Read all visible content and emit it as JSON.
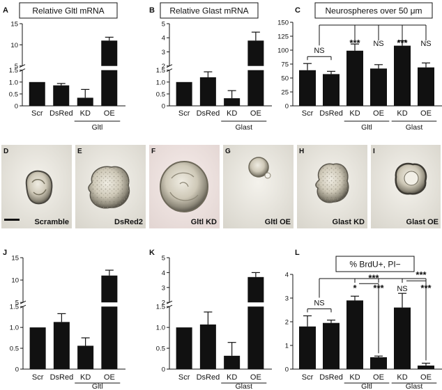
{
  "panels": {
    "A": {
      "letter": "A",
      "title": "Relative Gltl mRNA"
    },
    "B": {
      "letter": "B",
      "title": "Relative Glast mRNA"
    },
    "C": {
      "letter": "C",
      "title": "Neurospheres over 50 μm"
    },
    "J": {
      "letter": "J"
    },
    "K": {
      "letter": "K"
    },
    "L": {
      "letter": "L",
      "title": "% BrdU+, PI−"
    }
  },
  "micrographs": [
    {
      "letter": "D",
      "caption": "Scramble",
      "scale_bar": true
    },
    {
      "letter": "E",
      "caption": "DsRed2"
    },
    {
      "letter": "F",
      "caption": "Gltl KD"
    },
    {
      "letter": "G",
      "caption": "Gltl OE"
    },
    {
      "letter": "H",
      "caption": "Glast KD"
    },
    {
      "letter": "I",
      "caption": "Glast OE"
    }
  ],
  "chart_data": [
    {
      "panel": "A",
      "type": "bar",
      "title": "Relative Gltl mRNA",
      "categories": [
        "Scr",
        "DsRed",
        "KD",
        "OE"
      ],
      "groups": [
        {
          "label": "Gltl",
          "categories": [
            "KD",
            "OE"
          ]
        }
      ],
      "values": [
        1.0,
        0.86,
        0.34,
        11.0
      ],
      "errors": [
        0,
        0.08,
        0.35,
        0.8
      ],
      "axis_break": {
        "lower": [
          0,
          1.5
        ],
        "upper": [
          5,
          15
        ]
      },
      "yticks_lower": [
        "0",
        "0.5",
        "1.0",
        "1.5"
      ],
      "yticks_upper": [
        "5",
        "10",
        "15"
      ]
    },
    {
      "panel": "B",
      "type": "bar",
      "title": "Relative Glast mRNA",
      "categories": [
        "Scr",
        "DsRed",
        "KD",
        "OE"
      ],
      "groups": [
        {
          "label": "Glast",
          "categories": [
            "KD",
            "OE"
          ]
        }
      ],
      "values": [
        1.0,
        1.2,
        0.32,
        3.8
      ],
      "errors": [
        0,
        0.23,
        0.32,
        0.6
      ],
      "axis_break": {
        "lower": [
          0,
          1.5
        ],
        "upper": [
          2,
          5
        ]
      },
      "yticks_lower": [
        "0",
        "0.5",
        "1.0",
        "1.5"
      ],
      "yticks_upper": [
        "2",
        "3",
        "4",
        "5"
      ]
    },
    {
      "panel": "C",
      "type": "bar",
      "title": "Neurospheres over 50 μm",
      "categories": [
        "Scr",
        "DsRed",
        "KD",
        "OE",
        "KD",
        "OE"
      ],
      "groups": [
        {
          "label": "Gltl",
          "categories": [
            "KD",
            "OE"
          ]
        },
        {
          "label": "Glast",
          "categories": [
            "KD",
            "OE"
          ]
        }
      ],
      "values": [
        64,
        57,
        99,
        67,
        108,
        69
      ],
      "errors": [
        12,
        5,
        12,
        7,
        9,
        8
      ],
      "ylim": [
        0,
        150
      ],
      "yticks": [
        "0",
        "25",
        "50",
        "75",
        "100",
        "125",
        "150"
      ],
      "significance": [
        {
          "label": "NS",
          "type": "pair"
        },
        {
          "label": "***",
          "type": "vs-control"
        },
        {
          "label": "NS",
          "type": "vs-control"
        },
        {
          "label": "***",
          "type": "vs-control"
        },
        {
          "label": "NS",
          "type": "vs-control"
        }
      ]
    },
    {
      "panel": "J",
      "type": "bar",
      "categories": [
        "Scr",
        "DsRed",
        "KD",
        "OE"
      ],
      "groups": [
        {
          "label": "Gltl",
          "categories": [
            "KD",
            "OE"
          ]
        }
      ],
      "values": [
        1.0,
        1.13,
        0.56,
        11.0
      ],
      "errors": [
        0,
        0.2,
        0.19,
        1.2
      ],
      "axis_break": {
        "lower": [
          0,
          1.5
        ],
        "upper": [
          5,
          15
        ]
      },
      "yticks_lower": [
        "0",
        "0.5",
        "1.0",
        "1.5"
      ],
      "yticks_upper": [
        "5",
        "10",
        "15"
      ]
    },
    {
      "panel": "K",
      "type": "bar",
      "categories": [
        "Scr",
        "DsRed",
        "KD",
        "OE"
      ],
      "groups": [
        {
          "label": "Glast",
          "categories": [
            "KD",
            "OE"
          ]
        }
      ],
      "values": [
        1.0,
        1.07,
        0.32,
        3.7
      ],
      "errors": [
        0,
        0.3,
        0.32,
        0.3
      ],
      "axis_break": {
        "lower": [
          0,
          1.5
        ],
        "upper": [
          2,
          5
        ]
      },
      "yticks_lower": [
        "0",
        "0.5",
        "1.0",
        "1.5"
      ],
      "yticks_upper": [
        "2",
        "3",
        "4",
        "5"
      ]
    },
    {
      "panel": "L",
      "type": "bar",
      "title": "% BrdU+, PI−",
      "categories": [
        "Scr",
        "DsRed",
        "KD",
        "OE",
        "KD",
        "OE"
      ],
      "groups": [
        {
          "label": "Gltl",
          "categories": [
            "KD",
            "OE"
          ]
        },
        {
          "label": "Glast",
          "categories": [
            "KD",
            "OE"
          ]
        }
      ],
      "values": [
        1.8,
        1.95,
        2.9,
        0.5,
        2.6,
        0.15
      ],
      "errors": [
        0.45,
        0.12,
        0.18,
        0.05,
        0.6,
        0.1
      ],
      "ylim": [
        0,
        4
      ],
      "yticks": [
        "0",
        "1",
        "2",
        "3",
        "4"
      ],
      "significance": [
        {
          "label": "NS",
          "type": "pair"
        },
        {
          "label": "*",
          "type": "vs-control"
        },
        {
          "label": "***",
          "type": "vs-control"
        },
        {
          "label": "NS",
          "type": "vs-control"
        },
        {
          "label": "***",
          "type": "vs-control"
        },
        {
          "label": "***",
          "type": "kd-vs-oe"
        },
        {
          "label": "***",
          "type": "kd-vs-oe"
        }
      ]
    }
  ]
}
